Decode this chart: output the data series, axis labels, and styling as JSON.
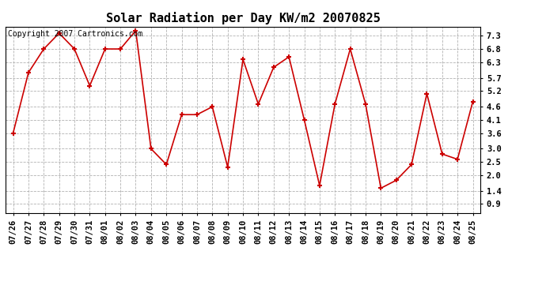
{
  "title": "Solar Radiation per Day KW/m2 20070825",
  "copyright": "Copyright 2007 Cartronics.com",
  "x_labels_display": [
    "07/26",
    "07/27",
    "07/28",
    "07/29",
    "07/30",
    "07/31",
    "08/01",
    "08/02",
    "08/03",
    "08/04",
    "08/05",
    "08/06",
    "08/07",
    "08/08",
    "08/09",
    "08/10",
    "08/11",
    "08/12",
    "08/13",
    "08/14",
    "08/15",
    "08/16",
    "08/17",
    "08/18",
    "08/19",
    "08/20",
    "08/21",
    "08/22",
    "08/23",
    "08/24",
    "08/25"
  ],
  "values": [
    3.6,
    5.9,
    6.8,
    7.4,
    6.8,
    5.4,
    6.8,
    6.8,
    7.5,
    3.0,
    2.4,
    4.3,
    4.3,
    4.6,
    2.3,
    6.4,
    4.7,
    6.1,
    6.5,
    4.1,
    1.6,
    4.7,
    6.8,
    4.7,
    1.5,
    1.8,
    2.4,
    5.1,
    2.8,
    2.6,
    4.8
  ],
  "line_color": "#cc0000",
  "marker_color": "#cc0000",
  "bg_color": "#ffffff",
  "grid_color": "#aaaaaa",
  "yticks": [
    0.9,
    1.4,
    2.0,
    2.5,
    3.0,
    3.6,
    4.1,
    4.6,
    5.2,
    5.7,
    6.3,
    6.8,
    7.3
  ],
  "ylim": [
    0.55,
    7.65
  ],
  "title_fontsize": 11,
  "copyright_fontsize": 7,
  "tick_fontsize": 7.5
}
